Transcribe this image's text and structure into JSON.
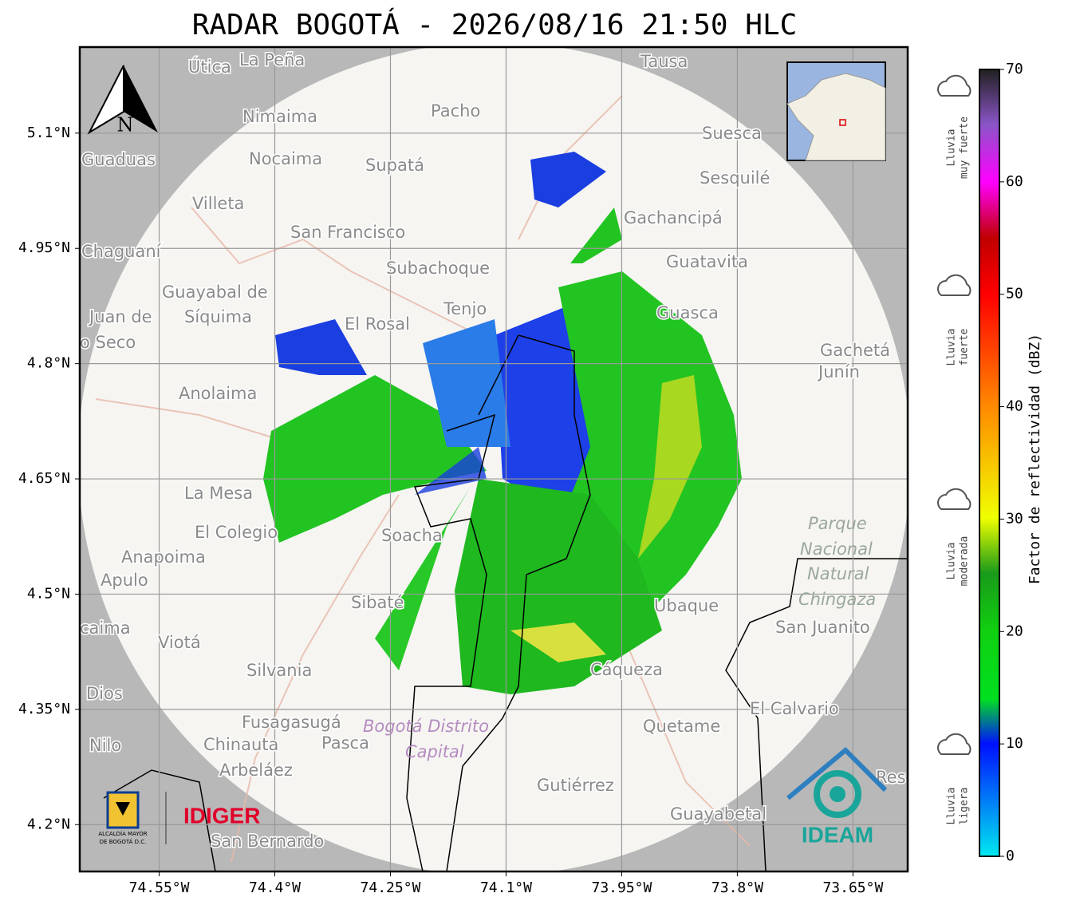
{
  "title": "RADAR BOGOTÁ - 2026/08/16 21:50 HLC",
  "map": {
    "lonlim": [
      -74.653,
      -73.579
    ],
    "latlim": [
      4.139,
      5.212
    ],
    "grid": true,
    "lon_ticks": [
      {
        "value": -74.55,
        "label": "74.55°W"
      },
      {
        "value": -74.4,
        "label": "74.4°W"
      },
      {
        "value": -74.25,
        "label": "74.25°W"
      },
      {
        "value": -74.1,
        "label": "74.1°W"
      },
      {
        "value": -73.95,
        "label": "73.95°W"
      },
      {
        "value": -73.8,
        "label": "73.8°W"
      },
      {
        "value": -73.65,
        "label": "73.65°W"
      }
    ],
    "lat_ticks": [
      {
        "value": 5.1,
        "label": "5.1°N"
      },
      {
        "value": 4.95,
        "label": "4.95°N"
      },
      {
        "value": 4.8,
        "label": "4.8°N"
      },
      {
        "value": 4.65,
        "label": "4.65°N"
      },
      {
        "value": 4.5,
        "label": "4.5°N"
      },
      {
        "value": 4.35,
        "label": "4.35°N"
      },
      {
        "value": 4.2,
        "label": "4.2°N"
      }
    ],
    "north_arrow": "N",
    "places": [
      "Útica",
      "La Peña",
      "Tausa",
      "Pacho",
      "Nimaima",
      "Guaduas",
      "Nocaima",
      "Supatá",
      "Suesca",
      "Sesquilé",
      "Villeta",
      "Gachancipá",
      "San Francisco",
      "Chaguaní",
      "Guatavita",
      "Subachoque",
      "Guayabal de",
      "Síquima",
      "Tenjo",
      "El Rosal",
      "Guasca",
      "Juan de",
      "o Seco",
      "Gachetá",
      "Junín",
      "Anolaima",
      "La Mesa",
      "El Colegio",
      "Soacha",
      "Anapoima",
      "Apulo",
      "San Juanito",
      "caima",
      "Viotá",
      "Sibaté",
      "Ubaque",
      "Silvania",
      "Cáqueza",
      "Dios",
      "El Calvario",
      "Fusagasugá",
      "Quetame",
      "Chinauta",
      "Pasca",
      "Nilo",
      "Arbeláez",
      "Gutiérrez",
      "Guayabetal",
      "San Bernardo",
      "Res"
    ],
    "park": [
      "Parque",
      "Nacional",
      "Natural",
      "Chingaza"
    ],
    "district": [
      "Bogotá Distrito",
      "Capital"
    ]
  },
  "colorbar": {
    "label": "Factor de reflectividad (dBZ)",
    "lim": [
      0,
      70
    ],
    "ticks": [
      0,
      10,
      20,
      30,
      40,
      50,
      60,
      70
    ]
  },
  "legend": [
    [
      "Lluvia",
      "muy fuerte"
    ],
    [
      "Lluvia",
      "fuerte"
    ],
    [
      "Lluvia",
      "moderada"
    ],
    [
      "Lluvia",
      "ligera"
    ]
  ],
  "logos": {
    "alcaldia": [
      "ALCALDÍA MAYOR",
      "DE BOGOTÁ D.C."
    ],
    "idiger": "IDIGER",
    "ideam": "IDEAM"
  }
}
